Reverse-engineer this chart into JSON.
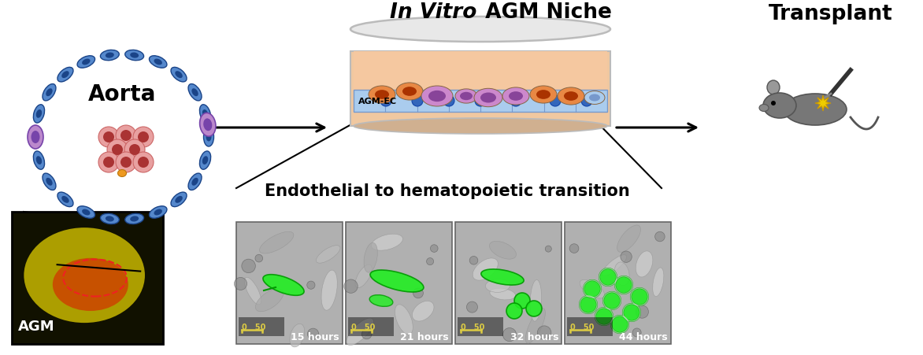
{
  "title_italic": "In Vitro",
  "title_normal": " AGM Niche",
  "transplant_label": "Transplant",
  "aorta_label": "Aorta",
  "agm_label": "AGM",
  "agm_ec_label": "AGM-EC",
  "transition_label": "Endothelial to hematopoietic transition",
  "time_labels": [
    "15 hours",
    "21 hours",
    "32 hours",
    "44 hours"
  ],
  "bg_color": "#ffffff",
  "aorta_ring_color": "#5588cc",
  "aorta_ring_dark": "#2255aa",
  "blood_cell_outer": "#e8a0a0",
  "blood_cell_inner": "#aa3333",
  "purple_cell_color": "#bb88cc",
  "scale_bar_color": "#ddcc44",
  "microscopy_bg": "#aaaaaa",
  "green_cell_color": "#33ee33"
}
